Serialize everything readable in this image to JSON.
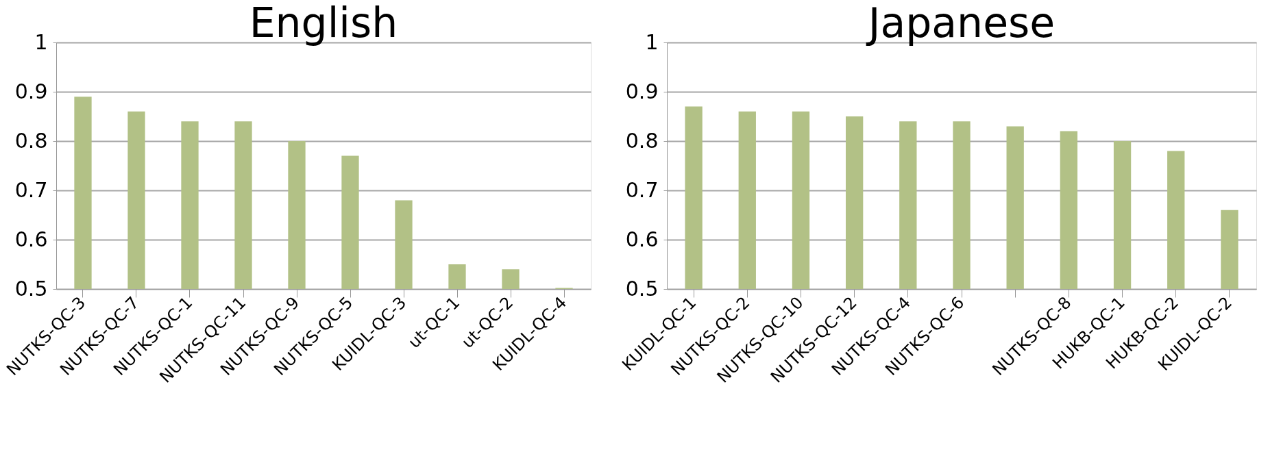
{
  "chart_data": [
    {
      "type": "bar",
      "title": "English",
      "categories": [
        "NUTKS-QC-3",
        "NUTKS-QC-7",
        "NUTKS-QC-1",
        "NUTKS-QC-11",
        "NUTKS-QC-9",
        "NUTKS-QC-5",
        "KUIDL-QC-3",
        "ut-QC-1",
        "ut-QC-2",
        "KUIDL-QC-4"
      ],
      "values": [
        0.89,
        0.86,
        0.84,
        0.84,
        0.8,
        0.77,
        0.68,
        0.55,
        0.54,
        0.502
      ],
      "color": "#b2c186",
      "ylim": [
        0.5,
        1
      ],
      "yticks": [
        0.5,
        0.6,
        0.7,
        0.8,
        0.9,
        1
      ],
      "grid": "y"
    },
    {
      "type": "bar",
      "title": "Japanese",
      "categories": [
        "KUIDL-QC-1",
        "NUTKS-QC-2",
        "NUTKS-QC-10",
        "NUTKS-QC-12",
        "NUTKS-QC-4",
        "NUTKS-QC-6",
        null,
        "NUTKS-QC-8",
        "HUKB-QC-1",
        "HUKB-QC-2",
        "KUIDL-QC-2"
      ],
      "values": [
        0.87,
        0.86,
        0.86,
        0.85,
        0.84,
        0.84,
        0.83,
        0.82,
        0.8,
        0.78,
        0.66
      ],
      "color": "#b2c186",
      "ylim": [
        0.5,
        1
      ],
      "yticks": [
        0.5,
        0.6,
        0.7,
        0.8,
        0.9,
        1
      ],
      "grid": "y"
    }
  ]
}
